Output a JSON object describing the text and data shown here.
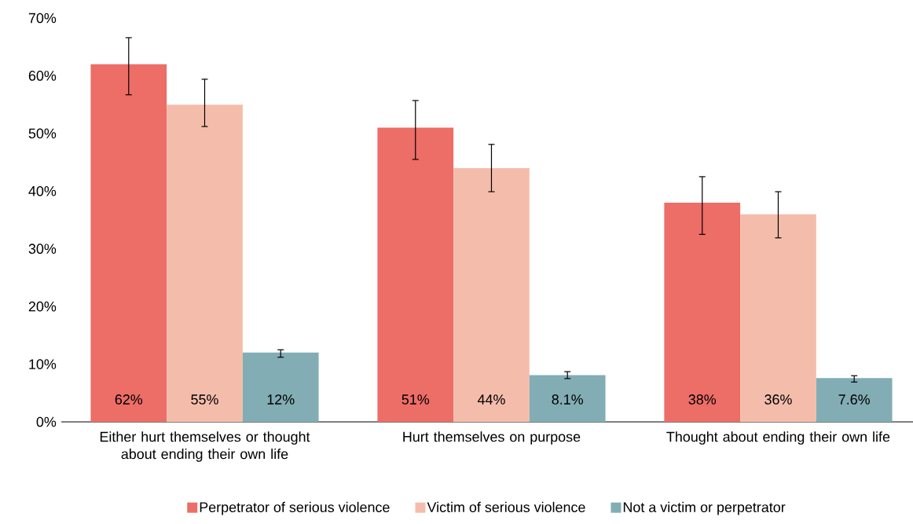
{
  "chart_data": {
    "type": "bar",
    "categories": [
      "Either hurt themselves or thought about ending their own life",
      "Hurt themselves on purpose",
      "Thought about ending their own life"
    ],
    "series": [
      {
        "name": "Perpetrator of serious violence",
        "color": "#ed6d67",
        "values": [
          62,
          51,
          38
        ],
        "errors": [
          [
            56.7,
            66.6
          ],
          [
            45.5,
            55.7
          ],
          [
            32.5,
            42.5
          ]
        ],
        "value_labels": [
          "62%",
          "51%",
          "38%"
        ]
      },
      {
        "name": "Victim of serious violence",
        "color": "#f4bdab",
        "values": [
          55,
          44,
          36
        ],
        "errors": [
          [
            51.2,
            59.4
          ],
          [
            39.9,
            48.1
          ],
          [
            31.9,
            39.9
          ]
        ],
        "value_labels": [
          "55%",
          "44%",
          "36%"
        ]
      },
      {
        "name": "Not a victim or perpetrator",
        "color": "#82adb5",
        "values": [
          12,
          8.1,
          7.6
        ],
        "errors": [
          [
            11.2,
            12.5
          ],
          [
            7.5,
            8.7
          ],
          [
            6.9,
            8.0
          ]
        ],
        "value_labels": [
          "12%",
          "8.1%",
          "7.6%"
        ]
      }
    ],
    "ylim": [
      0,
      70
    ],
    "yticks": [
      {
        "value": 0,
        "label": "0%"
      },
      {
        "value": 10,
        "label": "10%"
      },
      {
        "value": 20,
        "label": "20%"
      },
      {
        "value": 30,
        "label": "30%"
      },
      {
        "value": 40,
        "label": "40%"
      },
      {
        "value": 50,
        "label": "50%"
      },
      {
        "value": 60,
        "label": "60%"
      },
      {
        "value": 70,
        "label": "70%"
      }
    ],
    "grid": false,
    "legend": "bottom"
  }
}
